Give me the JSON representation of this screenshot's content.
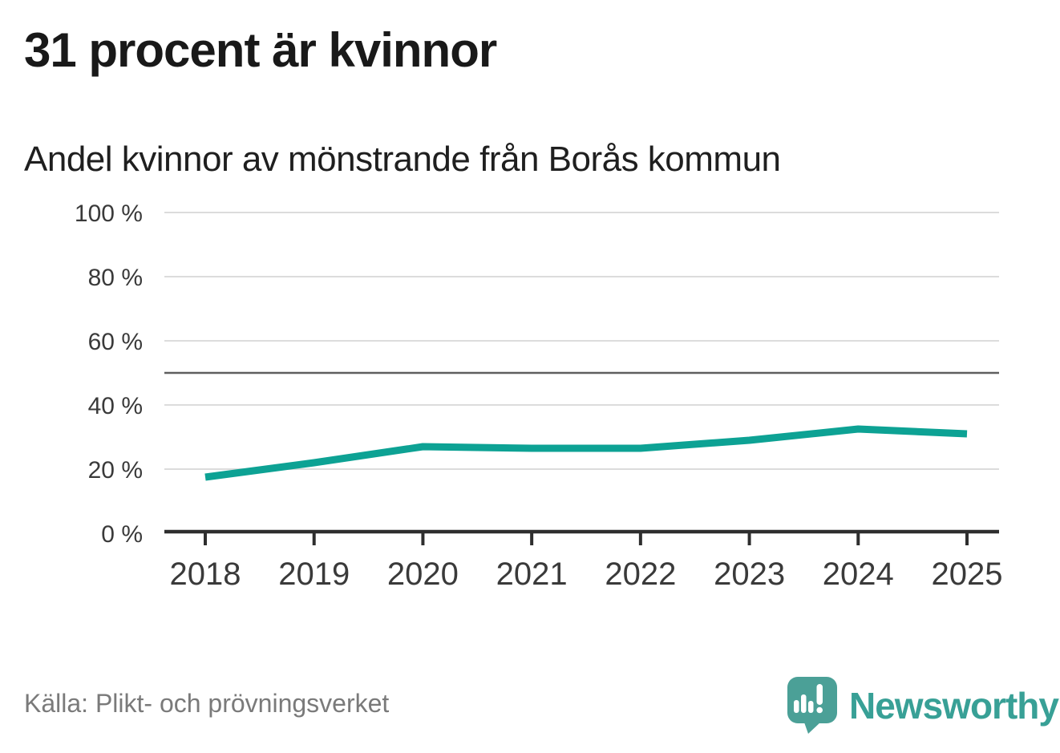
{
  "title": "31 procent är kvinnor",
  "subtitle": "Andel kvinnor av mönstrande från Borås kommun",
  "source": "Källa: Plikt- och prövningsverket",
  "brand": {
    "name": "Newsworthy",
    "icon": "newsworthy-speech-bubble-bar-chart-icon"
  },
  "colors": {
    "line": "#0da294",
    "grid": "#dcdcdc",
    "reference": "#5f5f5f",
    "axis": "#2e2e2e",
    "tick_label": "#3a3a3a",
    "title_text": "#191919",
    "source_text": "#7a7a7a",
    "brand_teal": "#38a096",
    "logo_bubble": "#4ba097"
  },
  "chart_data": {
    "type": "line",
    "title": "31 procent är kvinnor",
    "subtitle": "Andel kvinnor av mönstrande från Borås kommun",
    "x": [
      "2018",
      "2019",
      "2020",
      "2021",
      "2022",
      "2023",
      "2024",
      "2025"
    ],
    "series": [
      {
        "name": "Andel kvinnor av mönstrande",
        "values": [
          17.5,
          22,
          27,
          26.5,
          26.5,
          29,
          32.5,
          31
        ]
      }
    ],
    "unit": "%",
    "ylim": [
      0,
      100
    ],
    "yticks": [
      0,
      20,
      40,
      60,
      80,
      100
    ],
    "ytick_labels": [
      "0 %",
      "20 %",
      "40 %",
      "60 %",
      "80 %",
      "100 %"
    ],
    "reference_line": 50,
    "grid": true,
    "legend": "none",
    "xlabel": "",
    "ylabel": ""
  }
}
